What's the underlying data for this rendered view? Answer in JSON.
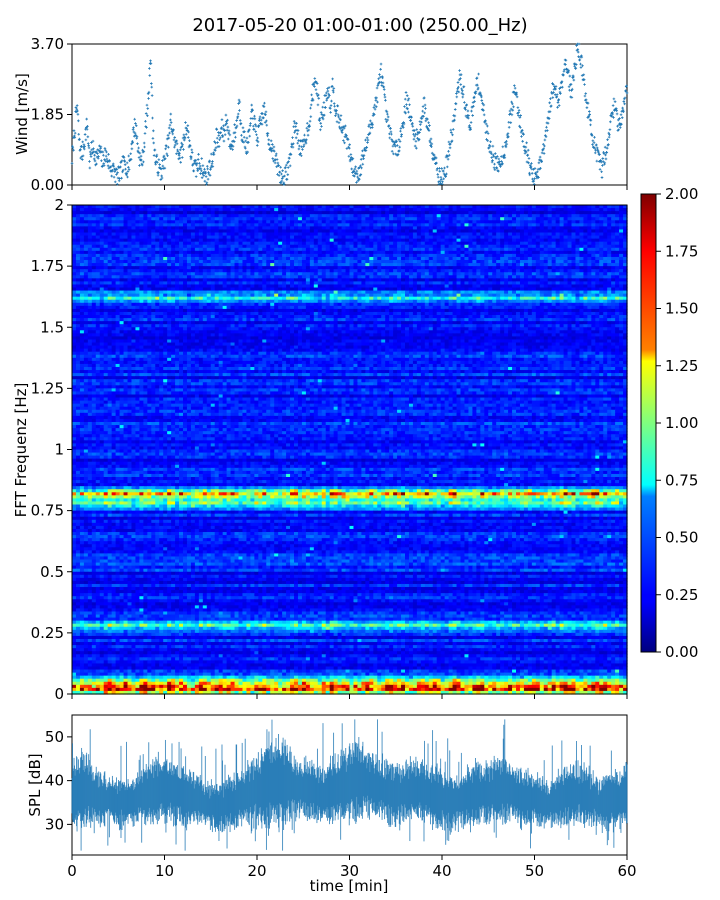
{
  "figure": {
    "title": "2017-05-20 01:00-01:00 (250.00_Hz)",
    "colors": {
      "series": "#1f77b4",
      "frame": "#000000"
    }
  },
  "chart_data": [
    {
      "type": "scatter",
      "ylabel": "Wind [m/s]",
      "xlim": [
        0,
        60
      ],
      "ylim": [
        0,
        3.7
      ],
      "yticks": [
        0.0,
        1.85,
        3.7
      ],
      "ytick_labels": [
        "0.00",
        "1.85",
        "3.70"
      ],
      "marker": "+",
      "color": "#1f77b4",
      "series": [
        {
          "x_start": 0,
          "x_end": 60,
          "values": [
            0.7,
            1.4,
            2.1,
            1.0,
            0.8,
            1.2,
            1.6,
            0.6,
            1.0,
            0.8,
            0.7,
            0.9,
            0.6,
            0.8,
            0.7,
            0.5,
            0.4,
            0.3,
            0.2,
            0.3,
            0.5,
            0.6,
            0.4,
            0.7,
            1.3,
            1.6,
            1.0,
            0.6,
            0.7,
            1.5,
            2.1,
            3.5,
            1.3,
            0.6,
            0.5,
            0.3,
            0.5,
            0.8,
            1.1,
            1.7,
            1.3,
            1.0,
            0.9,
            0.8,
            1.1,
            1.6,
            1.3,
            0.8,
            0.5,
            0.4,
            0.6,
            0.5,
            0.3,
            0.2,
            0.4,
            0.6,
            0.8,
            1.3,
            1.1,
            1.5,
            1.3,
            1.8,
            1.2,
            1.0,
            1.3,
            1.6,
            2.2,
            1.4,
            1.2,
            1.0,
            1.3,
            1.9,
            1.6,
            1.2,
            1.5,
            1.8,
            2.0,
            1.4,
            1.1,
            1.0,
            0.7,
            0.5,
            0.3,
            0.2,
            0.2,
            0.4,
            0.7,
            1.1,
            1.6,
            1.3,
            1.0,
            0.9,
            1.2,
            1.5,
            1.8,
            2.4,
            2.8,
            2.3,
            1.6,
            1.9,
            2.2,
            2.6,
            2.1,
            2.7,
            2.0,
            1.8,
            1.6,
            1.4,
            1.3,
            1.0,
            0.7,
            0.4,
            0.3,
            0.3,
            0.5,
            0.8,
            1.0,
            1.3,
            1.6,
            1.9,
            2.2,
            2.6,
            3.0,
            2.4,
            1.8,
            1.5,
            1.2,
            1.0,
            0.9,
            1.1,
            1.4,
            1.8,
            2.3,
            2.0,
            1.6,
            1.3,
            1.2,
            1.4,
            1.8,
            2.1,
            1.7,
            1.4,
            1.0,
            0.8,
            0.5,
            0.2,
            0.2,
            0.3,
            0.6,
            1.0,
            1.4,
            1.8,
            2.4,
            2.8,
            2.6,
            2.2,
            1.8,
            1.6,
            1.9,
            2.3,
            2.8,
            2.5,
            2.1,
            1.6,
            1.3,
            1.0,
            0.8,
            0.6,
            0.5,
            0.6,
            0.8,
            1.0,
            1.4,
            1.8,
            2.2,
            2.5,
            2.0,
            1.6,
            1.3,
            1.0,
            0.7,
            0.4,
            0.2,
            0.2,
            0.3,
            0.6,
            0.9,
            1.3,
            1.7,
            2.2,
            2.6,
            2.4,
            2.2,
            2.6,
            3.0,
            3.3,
            2.8,
            2.4,
            2.9,
            3.4,
            3.6,
            3.2,
            2.7,
            2.2,
            1.8,
            1.4,
            1.1,
            0.8,
            0.6,
            0.4,
            0.7,
            1.0,
            1.4,
            1.8,
            2.1,
            1.8,
            1.5,
            1.9,
            2.3,
            2.5
          ]
        }
      ]
    },
    {
      "type": "heatmap",
      "ylabel": "FFT Frequenz [Hz]",
      "xlim": [
        0,
        60
      ],
      "ylim": [
        0,
        2
      ],
      "yticks": [
        0,
        0.25,
        0.5,
        0.75,
        1,
        1.25,
        1.5,
        1.75,
        2
      ],
      "ytick_labels": [
        "0",
        "0.25",
        "0.5",
        "0.75",
        "1",
        "1.25",
        "1.5",
        "1.75",
        "2"
      ],
      "colormap": "jet",
      "colorbar": {
        "range": [
          0,
          2
        ],
        "ticks": [
          0.0,
          0.25,
          0.5,
          0.75,
          1.0,
          1.25,
          1.5,
          1.75,
          2.0
        ],
        "tick_labels": [
          "0.00",
          "0.25",
          "0.50",
          "0.75",
          "1.00",
          "1.25",
          "1.50",
          "1.75",
          "2.00"
        ]
      },
      "bands": [
        {
          "freq": 0.82,
          "level": 1.2
        },
        {
          "freq": 0.78,
          "level": 0.8
        },
        {
          "freq": 0.28,
          "level": 0.7
        },
        {
          "freq": 0.02,
          "level": 1.7
        },
        {
          "freq": 0.05,
          "level": 1.0
        },
        {
          "freq": 1.62,
          "level": 0.6
        }
      ]
    },
    {
      "type": "area",
      "xlabel": "time [min]",
      "ylabel": "SPL [dB]",
      "xlim": [
        0,
        60
      ],
      "ylim": [
        23,
        55
      ],
      "xticks": [
        0,
        10,
        20,
        30,
        40,
        50,
        60
      ],
      "xtick_labels": [
        "0",
        "10",
        "20",
        "30",
        "40",
        "50",
        "60"
      ],
      "yticks": [
        30,
        40,
        50
      ],
      "ytick_labels": [
        "30",
        "40",
        "50"
      ],
      "color": "#1f77b4",
      "series": [
        {
          "x_start": 0,
          "x_end": 60,
          "center": [
            37,
            38,
            37,
            36,
            36,
            35,
            35,
            36,
            37,
            38,
            38,
            37,
            36,
            36,
            35,
            34,
            34,
            35,
            36,
            37,
            38,
            39,
            40,
            39,
            38,
            38,
            37,
            37,
            38,
            39,
            40,
            40,
            39,
            38,
            37,
            37,
            38,
            38,
            37,
            36,
            35,
            35,
            36,
            37,
            37,
            38,
            38,
            37,
            36,
            36,
            35,
            35,
            36,
            37,
            37,
            36,
            35,
            35,
            36,
            37
          ],
          "spread": [
            5,
            7,
            5,
            5,
            4,
            4,
            4,
            4,
            5,
            6,
            6,
            5,
            5,
            4,
            4,
            4,
            4,
            5,
            5,
            6,
            6,
            7,
            8,
            6,
            5,
            5,
            5,
            5,
            6,
            6,
            7,
            6,
            5,
            5,
            5,
            5,
            5,
            5,
            5,
            5,
            5,
            4,
            5,
            5,
            5,
            5,
            6,
            5,
            5,
            4,
            4,
            4,
            5,
            5,
            5,
            5,
            4,
            5,
            5,
            5
          ]
        }
      ]
    }
  ]
}
